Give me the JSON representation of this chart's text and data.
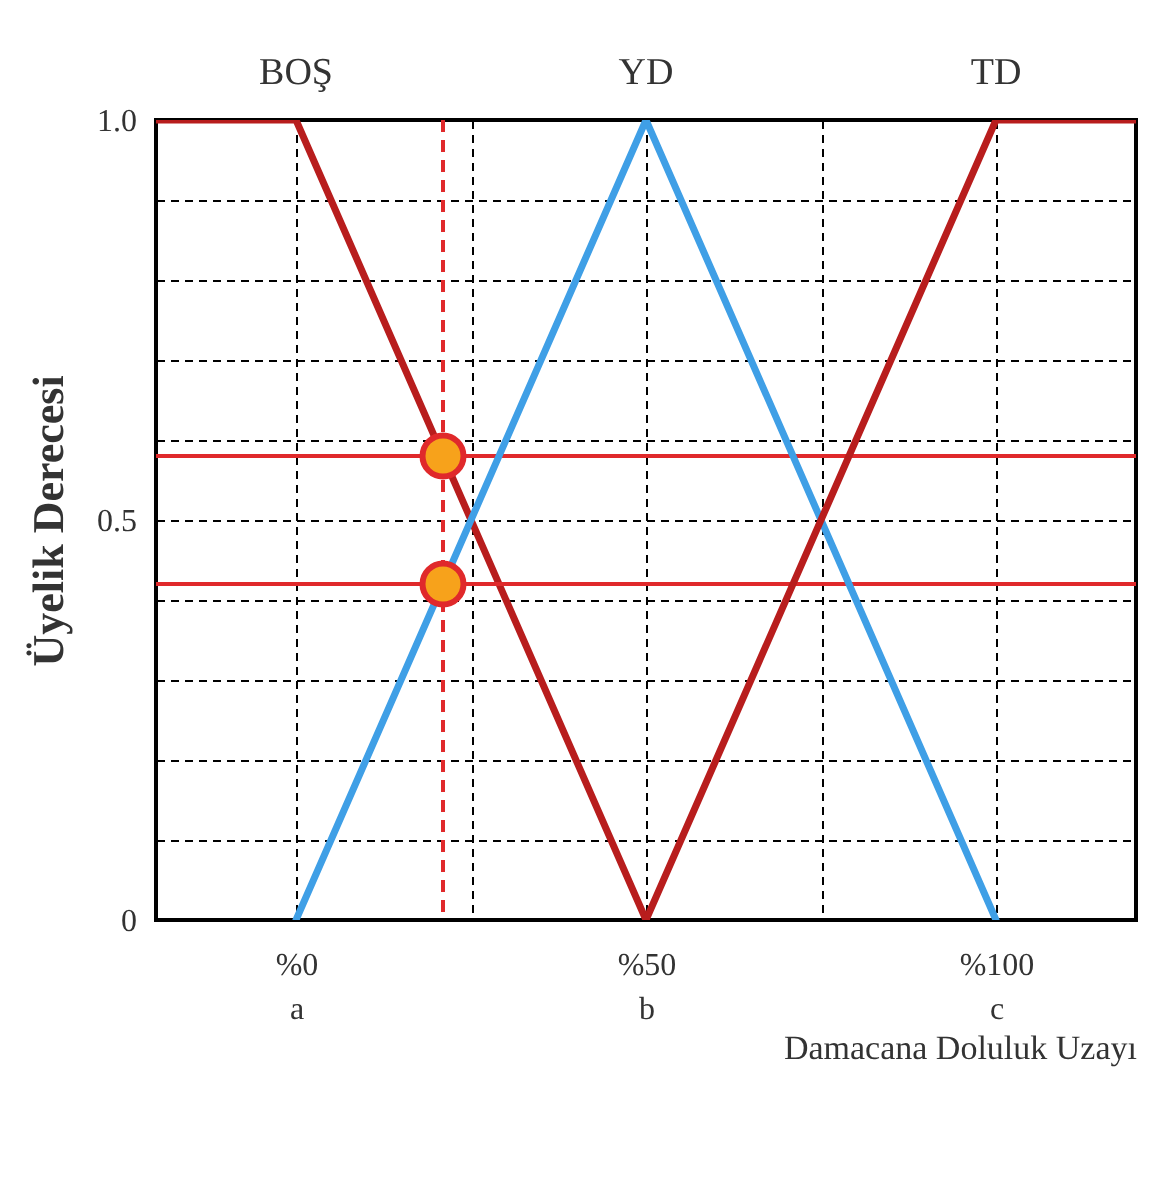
{
  "chart_data": {
    "type": "line",
    "xlabel": "Damacana Doluluk Uzayı",
    "ylabel": "Üyelik Derecesi",
    "xlim": [
      -20,
      120
    ],
    "ylim": [
      0,
      1
    ],
    "xticks": [
      {
        "value": 0,
        "label": "%0\na"
      },
      {
        "value": 25,
        "label": null
      },
      {
        "value": 50,
        "label": "%50\nb"
      },
      {
        "value": 75,
        "label": null
      },
      {
        "value": 100,
        "label": "%100\nc"
      }
    ],
    "yticks": [
      {
        "value": 0,
        "label": "0"
      },
      {
        "value": 0.1,
        "label": null
      },
      {
        "value": 0.2,
        "label": null
      },
      {
        "value": 0.3,
        "label": null
      },
      {
        "value": 0.4,
        "label": null
      },
      {
        "value": 0.5,
        "label": "0.5"
      },
      {
        "value": 0.6,
        "label": null
      },
      {
        "value": 0.7,
        "label": null
      },
      {
        "value": 0.8,
        "label": null
      },
      {
        "value": 0.9,
        "label": null
      },
      {
        "value": 1,
        "label": "1.0"
      }
    ],
    "grid": true,
    "series": [
      {
        "name": "BOŞ",
        "color": "#b81d1d",
        "x": [
          -20,
          0,
          50
        ],
        "values": [
          1,
          1,
          0
        ]
      },
      {
        "name": "YD",
        "color": "#3f9fe6",
        "x": [
          0,
          50,
          100
        ],
        "values": [
          0,
          1,
          0
        ]
      },
      {
        "name": "TD",
        "color": "#b81d1d",
        "x": [
          50,
          100,
          120
        ],
        "values": [
          0,
          1,
          1
        ]
      },
      {
        "type": "scatter",
        "color": "#f7a21b",
        "marker": "circle",
        "x": [
          21,
          21
        ],
        "values": [
          0.58,
          0.42
        ]
      }
    ],
    "ref_lines": [
      {
        "axis": "x",
        "value": 21,
        "color": "#e0292b",
        "line_style": "dashed"
      },
      {
        "axis": "y",
        "value": 0.58,
        "color": "#e0292b"
      },
      {
        "axis": "y",
        "value": 0.42,
        "color": "#e0292b"
      }
    ]
  }
}
